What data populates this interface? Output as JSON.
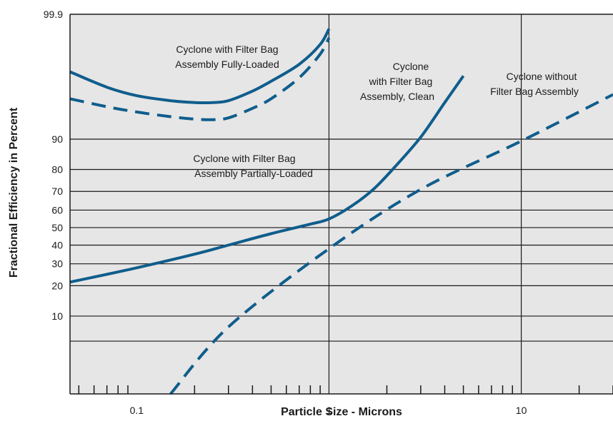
{
  "chart_data": {
    "type": "line",
    "title": "",
    "xlabel": "Particle Size - Microns",
    "ylabel": "Fractional Efficiency in Percent",
    "x_scale": "log",
    "y_scale": "probability",
    "xlim": [
      0.045,
      30
    ],
    "ylim": [
      0.8,
      99.9
    ],
    "x_tick_labels": [
      {
        "value": 0.1,
        "label": "0.1"
      },
      {
        "value": 1,
        "label": "1"
      },
      {
        "value": 10,
        "label": "10"
      }
    ],
    "y_tick_labels": [
      {
        "value": 10,
        "label": "10"
      },
      {
        "value": 20,
        "label": "20"
      },
      {
        "value": 30,
        "label": "30"
      },
      {
        "value": 40,
        "label": "40"
      },
      {
        "value": 50,
        "label": "50"
      },
      {
        "value": 60,
        "label": "60"
      },
      {
        "value": 70,
        "label": "70"
      },
      {
        "value": 80,
        "label": "80"
      },
      {
        "value": 90,
        "label": "90"
      },
      {
        "value": 99.9,
        "label": "99.9"
      }
    ],
    "y_gridlines": [
      5,
      10,
      20,
      30,
      40,
      50,
      60,
      70,
      80,
      90
    ],
    "x_gridlines": [
      1,
      10
    ],
    "grid": true,
    "colors": {
      "series": "#0f5d8c",
      "background": "#e6e6e6",
      "grid": "#1a1a1a"
    },
    "series": [
      {
        "style": "solid",
        "x": [
          0.045,
          0.07,
          0.1,
          0.15,
          0.2,
          0.25,
          0.3,
          0.4,
          0.5,
          0.7,
          0.9,
          1.0
        ],
        "y": [
          98.8,
          97.9,
          97.2,
          96.7,
          96.5,
          96.5,
          96.7,
          97.6,
          98.3,
          99.1,
          99.6,
          99.8
        ]
      },
      {
        "style": "dashed",
        "x": [
          0.045,
          0.07,
          0.1,
          0.15,
          0.2,
          0.25,
          0.3,
          0.4,
          0.5,
          0.7,
          0.9,
          1.0
        ],
        "y": [
          96.9,
          96.0,
          95.3,
          94.6,
          94.2,
          94.1,
          94.4,
          95.8,
          96.9,
          98.5,
          99.4,
          99.7
        ]
      },
      {
        "style": "solid",
        "x": [
          0.045,
          0.1,
          0.2,
          0.3,
          0.5,
          0.8,
          1.0,
          1.3,
          1.7,
          2.2,
          3.0,
          4.0,
          5.0
        ],
        "y": [
          21.5,
          28,
          35,
          40,
          46.5,
          52,
          55,
          62,
          71,
          81,
          90.5,
          96.5,
          98.6
        ]
      },
      {
        "style": "dashed",
        "x": [
          0.15,
          0.3,
          1.0,
          3.0,
          10.0,
          30.0
        ],
        "y": [
          0.8,
          7.5,
          38,
          71,
          89.5,
          97.3
        ]
      }
    ],
    "annotations": [
      {
        "lines": [
          "Cyclone with Filter Bag",
          "Assembly Fully-Loaded"
        ]
      },
      {
        "lines": [
          "Cyclone with Filter Bag",
          "Assembly Partially-Loaded"
        ]
      },
      {
        "lines": [
          "Cyclone",
          "with Filter Bag",
          "Assembly, Clean"
        ]
      },
      {
        "lines": [
          "Cyclone without",
          "Filter Bag Assembly"
        ]
      }
    ]
  }
}
